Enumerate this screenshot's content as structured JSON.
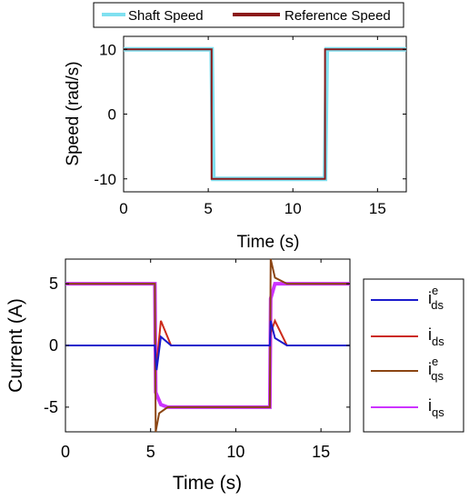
{
  "chart_data": [
    {
      "type": "line",
      "xlabel": "Time (s)",
      "ylabel": "Speed (rad/s)",
      "xlim": [
        0,
        16.7
      ],
      "ylim": [
        -12,
        12
      ],
      "xticks": [
        "0",
        "5",
        "10",
        "15"
      ],
      "yticks": [
        "10",
        "0",
        "-10"
      ],
      "legend_placement": "top",
      "series": [
        {
          "name": "Shaft Speed",
          "color": "#7fe0f0",
          "x": [
            0,
            5.2,
            5.3,
            11.9,
            12.0,
            16.7
          ],
          "y": [
            10,
            10,
            -10,
            -10,
            10,
            10
          ]
        },
        {
          "name": "Reference Speed",
          "color": "#8b1a1a",
          "x": [
            0,
            5.2,
            5.2,
            11.9,
            11.9,
            16.7
          ],
          "y": [
            10,
            10,
            -10,
            -10,
            10,
            10
          ]
        }
      ]
    },
    {
      "type": "line",
      "xlabel": "Time (s)",
      "ylabel": "Current (A)",
      "xlim": [
        0,
        16.7
      ],
      "ylim": [
        -7,
        7
      ],
      "xticks": [
        "0",
        "5",
        "10",
        "15"
      ],
      "yticks": [
        "5",
        "0",
        "-5"
      ],
      "legend_placement": "right",
      "series": [
        {
          "name": "i_ds^e",
          "label_main": "i",
          "label_sub": "ds",
          "label_sup": "e",
          "color": "#1a1acc",
          "x": [
            0,
            5.25,
            5.35,
            5.6,
            6.2,
            12.0,
            12.05,
            12.3,
            13.0,
            16.7
          ],
          "y": [
            0,
            0,
            -2.0,
            0.7,
            0,
            0,
            2.0,
            0.6,
            0,
            0
          ]
        },
        {
          "name": "i_ds",
          "label_main": "i",
          "label_sub": "ds",
          "label_sup": "",
          "color": "#cc2a1a",
          "x": [
            0,
            5.25,
            5.35,
            5.6,
            6.2,
            12.0,
            12.05,
            12.3,
            13.0,
            16.7
          ],
          "y": [
            0,
            0,
            -1.5,
            2.0,
            0,
            0,
            1.0,
            2.0,
            0,
            0
          ]
        },
        {
          "name": "i_qs^e",
          "label_main": "i",
          "label_sub": "qs",
          "label_sup": "e",
          "color": "#8b4513",
          "x": [
            0,
            5.25,
            5.3,
            5.5,
            6.0,
            12.0,
            12.05,
            12.3,
            13.0,
            16.7
          ],
          "y": [
            5,
            5,
            -7,
            -5.5,
            -5,
            -5,
            7,
            5.5,
            5,
            5
          ]
        },
        {
          "name": "i_qs",
          "label_main": "i",
          "label_sub": "qs",
          "label_sup": "",
          "color": "#cc33ff",
          "x": [
            0,
            5.25,
            5.3,
            5.6,
            6.0,
            12.0,
            12.05,
            12.3,
            13.0,
            16.7
          ],
          "y": [
            5,
            5,
            -3.8,
            -4.8,
            -5,
            -5,
            3.8,
            5,
            5,
            5
          ]
        }
      ]
    }
  ]
}
